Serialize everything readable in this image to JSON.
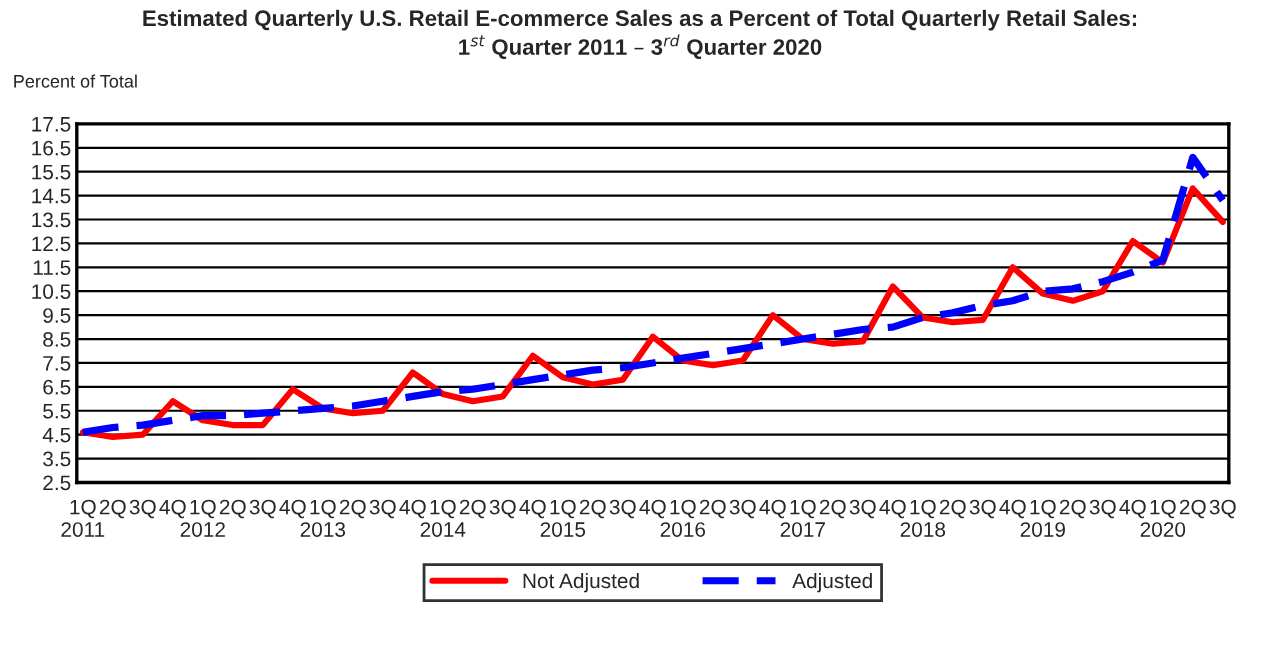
{
  "chart_data": {
    "type": "line",
    "title": "Estimated Quarterly U.S. Retail E-commerce Sales as a Percent of Total Quarterly Retail Sales:\n1$^{st}$ Quarter 2011 – 3$^{rd}$ Quarter 2020",
    "ylabel": "Percent of Total",
    "categories": [
      "1Q\n2011",
      "2Q",
      "3Q",
      "4Q",
      "1Q\n2012",
      "2Q",
      "3Q",
      "4Q",
      "1Q\n2013",
      "2Q",
      "3Q",
      "4Q",
      "1Q\n2014",
      "2Q",
      "3Q",
      "4Q",
      "1Q\n2015",
      "2Q",
      "3Q",
      "4Q",
      "1Q\n2016",
      "2Q",
      "3Q",
      "4Q",
      "1Q\n2017",
      "2Q",
      "3Q",
      "4Q",
      "1Q\n2018",
      "2Q",
      "3Q",
      "4Q",
      "1Q\n2019",
      "2Q",
      "3Q",
      "4Q",
      "1Q\n2020",
      "2Q",
      "3Q"
    ],
    "series": [
      {
        "name": "Not Adjusted",
        "color": "#ff0000",
        "line_style": "solid",
        "values": [
          4.6,
          4.4,
          4.5,
          5.9,
          5.1,
          4.9,
          4.9,
          6.4,
          5.6,
          5.4,
          5.5,
          7.1,
          6.2,
          5.9,
          6.1,
          7.8,
          6.9,
          6.6,
          6.8,
          8.6,
          7.6,
          7.4,
          7.6,
          9.5,
          8.5,
          8.3,
          8.4,
          10.7,
          9.4,
          9.2,
          9.3,
          11.5,
          10.4,
          10.1,
          10.5,
          12.6,
          11.7,
          14.8,
          13.4
        ]
      },
      {
        "name": "Adjusted",
        "color": "#0000ff",
        "line_style": "dashed",
        "values": [
          4.6,
          4.8,
          4.9,
          5.1,
          5.3,
          5.3,
          5.4,
          5.5,
          5.6,
          5.7,
          5.9,
          6.1,
          6.3,
          6.4,
          6.6,
          6.8,
          7.0,
          7.2,
          7.3,
          7.5,
          7.7,
          7.9,
          8.1,
          8.3,
          8.5,
          8.7,
          8.9,
          9.0,
          9.4,
          9.6,
          9.9,
          10.1,
          10.5,
          10.6,
          10.9,
          11.3,
          11.8,
          16.1,
          14.3
        ]
      }
    ],
    "ylim": [
      2.5,
      17.5
    ],
    "yticks": [
      2.5,
      3.5,
      4.5,
      5.5,
      6.5,
      7.5,
      8.5,
      9.5,
      10.5,
      11.5,
      12.5,
      13.5,
      14.5,
      15.5,
      16.5,
      17.5
    ],
    "grid": "y",
    "legend": "bottom",
    "marker": "none"
  }
}
